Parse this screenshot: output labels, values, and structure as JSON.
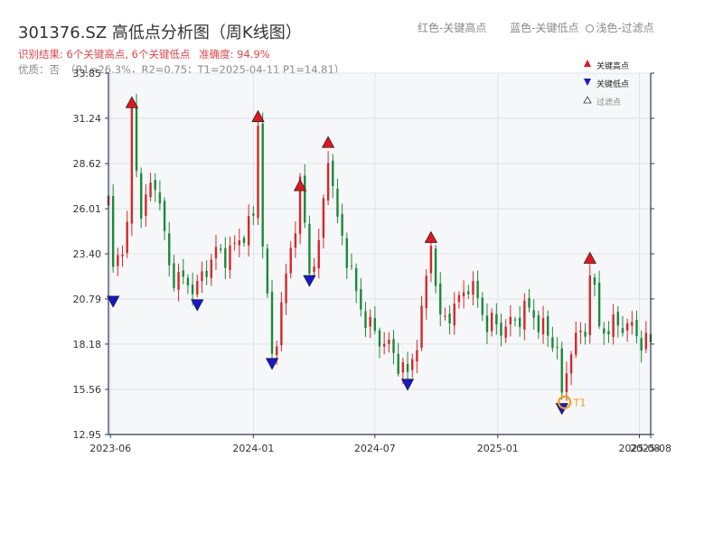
{
  "header": {
    "title": "301376.SZ 高低点分析图（周K线图）",
    "result_text": "识别结果: 6个关键高点, 6个关键低点",
    "accuracy_text": "准确度: 94.9%",
    "quality_label": "优质：否",
    "quality_params": "（R1=26.3%，R2=0.75；T1=2025-04-11 P1=14.81）",
    "legend_red": "红色-关键高点",
    "legend_blue": "蓝色-关键低点",
    "legend_light": "浅色-过滤点"
  },
  "legend": {
    "high": "关键高点",
    "low": "关键低点",
    "filtered": "过滤点"
  },
  "colors": {
    "up": "#d62728",
    "down": "#1a8a3a",
    "high_marker": "#e8141b",
    "low_marker": "#1515d6",
    "t1_ring": "#f39c12",
    "axis": "#2b3a4a",
    "grid": "#d9dde3",
    "plot_bg": "#f6f7f9"
  },
  "chart_data": {
    "type": "candlestick",
    "title": "301376.SZ 高低点分析图（周K线图）",
    "xlabel": "",
    "ylabel": "",
    "x_range": [
      "2023-05-29",
      "2025-08-18"
    ],
    "ylim": [
      12.95,
      33.85
    ],
    "y_ticks": [
      12.95,
      15.56,
      18.18,
      20.79,
      23.4,
      26.01,
      28.62,
      31.24,
      33.85
    ],
    "y_tick_labels": [
      "12.95",
      "15.56",
      "18.18",
      "20.79",
      "23.40",
      "26.01",
      "28.62",
      "31.24",
      "33.85"
    ],
    "x_ticks": [
      "2023-06-01",
      "2024-01-01",
      "2024-07-01",
      "2025-01-01",
      "2025-08-01",
      "2025-08-18"
    ],
    "x_tick_labels": [
      "2023-06",
      "2024-01",
      "2024-07",
      "2025-01",
      "2025-08",
      "2025-08"
    ],
    "grid": true,
    "legend_position": "top-right",
    "price_anchors": [
      [
        "2023-05-29",
        26.2
      ],
      [
        "2023-06-05",
        22.0
      ],
      [
        "2023-06-26",
        25.0
      ],
      [
        "2023-07-03",
        31.8
      ],
      [
        "2023-07-17",
        26.0
      ],
      [
        "2023-08-07",
        27.5
      ],
      [
        "2023-08-28",
        22.5
      ],
      [
        "2023-09-25",
        22.0
      ],
      [
        "2023-10-09",
        21.2
      ],
      [
        "2023-11-06",
        23.4
      ],
      [
        "2023-12-04",
        24.0
      ],
      [
        "2024-01-01",
        25.0
      ],
      [
        "2024-01-08",
        31.0
      ],
      [
        "2024-01-15",
        24.0
      ],
      [
        "2024-01-29",
        17.7
      ],
      [
        "2024-02-19",
        22.0
      ],
      [
        "2024-03-04",
        25.0
      ],
      [
        "2024-03-11",
        27.0
      ],
      [
        "2024-03-25",
        22.5
      ],
      [
        "2024-04-08",
        24.0
      ],
      [
        "2024-04-22",
        29.5
      ],
      [
        "2024-05-06",
        25.0
      ],
      [
        "2024-06-03",
        21.0
      ],
      [
        "2024-07-01",
        19.0
      ],
      [
        "2024-07-29",
        17.2
      ],
      [
        "2024-08-19",
        16.5
      ],
      [
        "2024-09-09",
        20.0
      ],
      [
        "2024-09-23",
        24.0
      ],
      [
        "2024-10-07",
        19.0
      ],
      [
        "2024-10-28",
        20.5
      ],
      [
        "2024-11-18",
        22.0
      ],
      [
        "2024-12-16",
        19.0
      ],
      [
        "2025-01-13",
        19.5
      ],
      [
        "2025-02-10",
        20.0
      ],
      [
        "2025-03-10",
        19.0
      ],
      [
        "2025-03-31",
        18.5
      ],
      [
        "2025-04-07",
        15.0
      ],
      [
        "2025-04-21",
        18.0
      ],
      [
        "2025-05-12",
        18.5
      ],
      [
        "2025-05-19",
        22.8
      ],
      [
        "2025-06-02",
        19.5
      ],
      [
        "2025-07-07",
        19.0
      ],
      [
        "2025-08-18",
        18.5
      ]
    ],
    "key_highs": [
      {
        "date": "2023-07-03",
        "price": 31.8
      },
      {
        "date": "2024-01-08",
        "price": 31.0
      },
      {
        "date": "2024-03-11",
        "price": 27.0
      },
      {
        "date": "2024-04-22",
        "price": 29.5
      },
      {
        "date": "2024-09-23",
        "price": 24.0
      },
      {
        "date": "2025-05-19",
        "price": 22.8
      }
    ],
    "key_lows": [
      {
        "date": "2023-06-05",
        "price": 21.0
      },
      {
        "date": "2023-10-09",
        "price": 20.8
      },
      {
        "date": "2024-01-29",
        "price": 17.4
      },
      {
        "date": "2024-03-25",
        "price": 22.2
      },
      {
        "date": "2024-08-19",
        "price": 16.2
      },
      {
        "date": "2025-04-07",
        "price": 14.8
      }
    ],
    "t1": {
      "date": "2025-04-11",
      "price": 14.81,
      "label": "T1"
    }
  }
}
